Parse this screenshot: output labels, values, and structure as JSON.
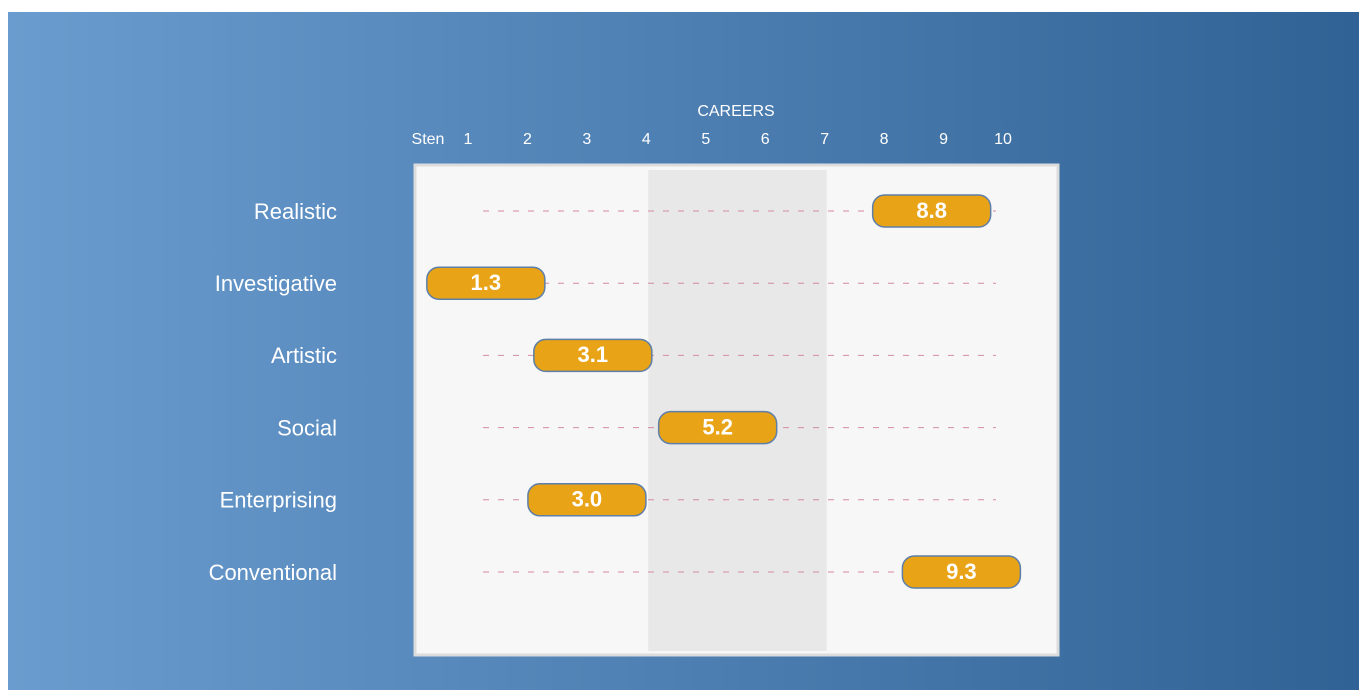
{
  "chart_data": {
    "type": "dot",
    "title": "CAREERS",
    "x_label": "Sten",
    "categories": [
      "Realistic",
      "Investigative",
      "Artistic",
      "Social",
      "Enterprising",
      "Conventional"
    ],
    "values": [
      8.8,
      1.3,
      3.1,
      5.2,
      3.0,
      9.3
    ],
    "value_labels": [
      "8.8",
      "1.3",
      "3.1",
      "5.2",
      "3.0",
      "9.3"
    ],
    "xlim": [
      1,
      10
    ],
    "xticks": [
      1,
      2,
      3,
      4,
      5,
      6,
      7,
      8,
      9,
      10
    ],
    "shaded_range": [
      4,
      7
    ],
    "color": "#e8a317"
  }
}
